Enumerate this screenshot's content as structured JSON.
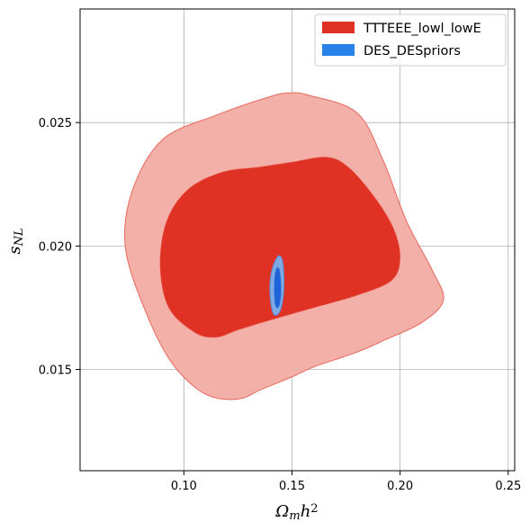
{
  "chart_data": {
    "type": "contour",
    "title": "",
    "xlabel": "Ω_m h^2",
    "ylabel": "s_NL",
    "xlim": [
      0.052,
      0.253
    ],
    "ylim": [
      0.0109,
      0.0296
    ],
    "x_ticks": [
      0.1,
      0.15,
      0.2,
      0.25
    ],
    "x_tick_labels": [
      "0.10",
      "0.15",
      "0.20",
      "0.25"
    ],
    "y_ticks": [
      0.015,
      0.02,
      0.025
    ],
    "y_tick_labels": [
      "0.015",
      "0.020",
      "0.025"
    ],
    "grid": true,
    "legend_position": "top-right",
    "series": [
      {
        "name": "TTTEEE_lowl_lowE",
        "color": "#e03224",
        "color_outer": "#f3b0a8",
        "contours": [
          {
            "level": "outer",
            "points": [
              [
                0.073,
                0.0199
              ],
              [
                0.076,
                0.0222
              ],
              [
                0.09,
                0.0243
              ],
              [
                0.115,
                0.0253
              ],
              [
                0.138,
                0.026
              ],
              [
                0.148,
                0.0262
              ],
              [
                0.158,
                0.0261
              ],
              [
                0.18,
                0.0254
              ],
              [
                0.192,
                0.0235
              ],
              [
                0.203,
                0.021
              ],
              [
                0.215,
                0.019
              ],
              [
                0.22,
                0.0178
              ],
              [
                0.21,
                0.0169
              ],
              [
                0.193,
                0.0162
              ],
              [
                0.18,
                0.0157
              ],
              [
                0.16,
                0.0151
              ],
              [
                0.15,
                0.0147
              ],
              [
                0.136,
                0.0142
              ],
              [
                0.125,
                0.0138
              ],
              [
                0.11,
                0.014
              ],
              [
                0.095,
                0.0152
              ],
              [
                0.083,
                0.0172
              ]
            ]
          },
          {
            "level": "inner",
            "points": [
              [
                0.089,
                0.0192
              ],
              [
                0.092,
                0.021
              ],
              [
                0.102,
                0.0223
              ],
              [
                0.118,
                0.023
              ],
              [
                0.135,
                0.0232
              ],
              [
                0.15,
                0.0234
              ],
              [
                0.166,
                0.0236
              ],
              [
                0.176,
                0.0232
              ],
              [
                0.188,
                0.022
              ],
              [
                0.197,
                0.0207
              ],
              [
                0.2,
                0.0195
              ],
              [
                0.196,
                0.0186
              ],
              [
                0.18,
                0.018
              ],
              [
                0.16,
                0.0175
              ],
              [
                0.14,
                0.017
              ],
              [
                0.125,
                0.0166
              ],
              [
                0.115,
                0.0163
              ],
              [
                0.105,
                0.0165
              ],
              [
                0.093,
                0.0175
              ]
            ]
          }
        ]
      },
      {
        "name": "DES_DESpriors",
        "color": "#1e64d8",
        "color_outer": "#7ea9e2",
        "contours": [
          {
            "level": "outer",
            "points": [
              [
                0.1404,
                0.0176
              ],
              [
                0.1398,
                0.0184
              ],
              [
                0.141,
                0.0191
              ],
              [
                0.1438,
                0.0196
              ],
              [
                0.1458,
                0.0193
              ],
              [
                0.1462,
                0.0182
              ],
              [
                0.1446,
                0.0174
              ],
              [
                0.142,
                0.0172
              ]
            ]
          },
          {
            "level": "inner",
            "points": [
              [
                0.1419,
                0.0178
              ],
              [
                0.1418,
                0.0186
              ],
              [
                0.1428,
                0.0191
              ],
              [
                0.1444,
                0.019
              ],
              [
                0.145,
                0.0182
              ],
              [
                0.1442,
                0.0176
              ],
              [
                0.1428,
                0.0175
              ]
            ]
          }
        ]
      }
    ]
  }
}
